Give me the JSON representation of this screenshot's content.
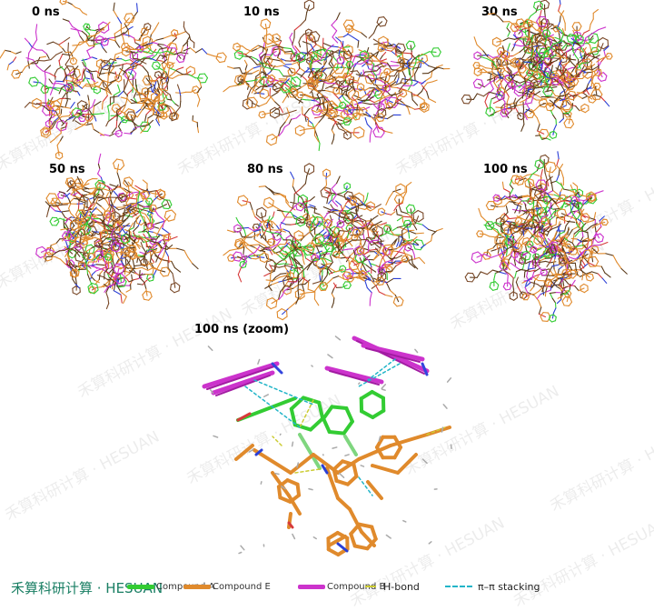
{
  "panels": [
    {
      "label": "0 ns"
    },
    {
      "label": "10 ns"
    },
    {
      "label": "30 ns"
    },
    {
      "label": "50 ns"
    },
    {
      "label": "80 ns"
    },
    {
      "label": "100 ns"
    },
    {
      "label": "100 ns (zoom)"
    }
  ],
  "watermark_text": "禾算科研计算 · HESUAN",
  "brand": "禾算科研计算 · HESUAN",
  "legend": {
    "compound_a": "Compound A",
    "compound_e": "Compound E",
    "compound_b": "Compound B",
    "hbond": "H-bond",
    "pipi": "π–π stacking"
  },
  "colors": {
    "compound_a": "#33cc33",
    "compound_e": "#e08a2c",
    "compound_b": "#cc33cc",
    "hbond": "#cccc33",
    "pipi": "#22b5c8",
    "brand": "#1a7f64"
  }
}
